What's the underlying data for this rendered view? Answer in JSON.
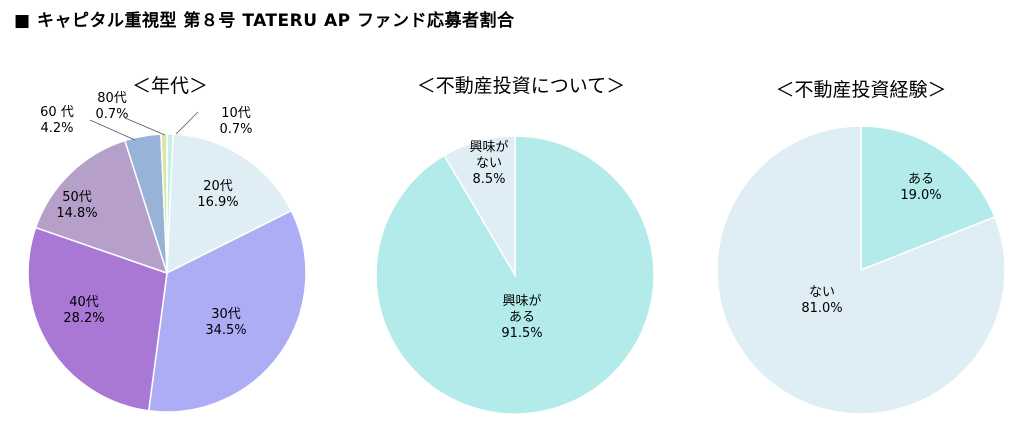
{
  "page": {
    "title": "■ キャピタル重視型 第８号 TATERU AP ファンド応募者割合"
  },
  "chart_data": [
    {
      "type": "pie",
      "title": "＜年代＞",
      "start": "12 o'clock",
      "direction": "clockwise",
      "slices": [
        {
          "key": "10代",
          "label": "10代",
          "pct": "0.7%",
          "value": 0.7,
          "color": "#c6efe7"
        },
        {
          "key": "20代",
          "label": "20代",
          "pct": "16.9%",
          "value": 16.9,
          "color": "#deeef4"
        },
        {
          "key": "30代",
          "label": "30代",
          "pct": "34.5%",
          "value": 34.5,
          "color": "#adadf6"
        },
        {
          "key": "40代",
          "label": "40代",
          "pct": "28.2%",
          "value": 28.2,
          "color": "#a878d4"
        },
        {
          "key": "50代",
          "label": "50代",
          "pct": "14.8%",
          "value": 14.8,
          "color": "#b6a0c9"
        },
        {
          "key": "60代",
          "label": "60 代",
          "pct": "4.2%",
          "value": 4.2,
          "color": "#97b3d8"
        },
        {
          "key": "80代",
          "label": "80代",
          "pct": "0.7%",
          "value": 0.7,
          "color": "#d9e8a6"
        }
      ]
    },
    {
      "type": "pie",
      "title": "＜不動産投資について＞",
      "start": "12 o'clock",
      "direction": "clockwise",
      "slices": [
        {
          "key": "興味がある",
          "label": "興味が\nある",
          "pct": "91.5%",
          "value": 91.5,
          "color": "#b2ebe9"
        },
        {
          "key": "興味がない",
          "label": "興味が\nない",
          "pct": "8.5%",
          "value": 8.5,
          "color": "#deeef4"
        }
      ]
    },
    {
      "type": "pie",
      "title": "＜不動産投資経験＞",
      "start": "12 o'clock",
      "direction": "clockwise",
      "slices": [
        {
          "key": "ある",
          "label": "ある",
          "pct": "19.0%",
          "value": 19.0,
          "color": "#b2ebe9"
        },
        {
          "key": "ない",
          "label": "ない",
          "pct": "81.0%",
          "value": 81.0,
          "color": "#deeef4"
        }
      ]
    }
  ]
}
